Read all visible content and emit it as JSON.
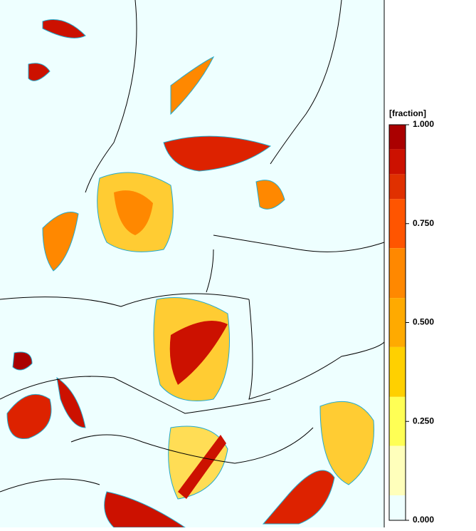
{
  "colorbar": {
    "label": "[fraction]",
    "range": [
      0,
      1
    ],
    "ticks": [
      {
        "value": 1,
        "label": "1.000"
      },
      {
        "value": 0.75,
        "label": "0.750"
      },
      {
        "value": 0.5,
        "label": "0.500"
      },
      {
        "value": 0.25,
        "label": "0.250"
      },
      {
        "value": 0,
        "label": "0.000"
      }
    ],
    "bands": [
      {
        "from": 0.938,
        "to": 1,
        "color": "#aa0000"
      },
      {
        "from": 0.875,
        "to": 0.938,
        "color": "#cc1100"
      },
      {
        "from": 0.812,
        "to": 0.875,
        "color": "#e03000"
      },
      {
        "from": 0.688,
        "to": 0.812,
        "color": "#ff5500"
      },
      {
        "from": 0.562,
        "to": 0.688,
        "color": "#ff8800"
      },
      {
        "from": 0.438,
        "to": 0.562,
        "color": "#ffaa00"
      },
      {
        "from": 0.312,
        "to": 0.438,
        "color": "#ffd000"
      },
      {
        "from": 0.188,
        "to": 0.312,
        "color": "#ffff55"
      },
      {
        "from": 0.063,
        "to": 0.188,
        "color": "#ffffbb"
      },
      {
        "from": 0,
        "to": 0.063,
        "color": "#eeffff"
      }
    ]
  }
}
